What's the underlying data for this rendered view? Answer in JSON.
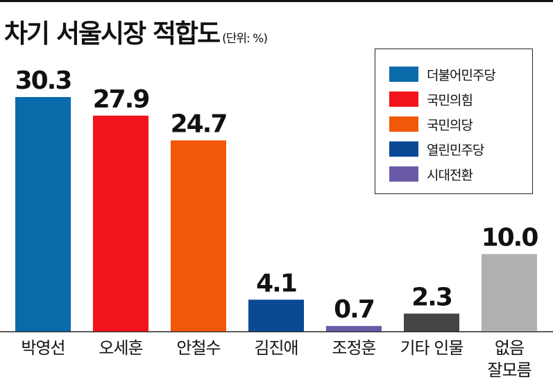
{
  "header": {
    "title": "차기 서울시장 적합도",
    "unit": "(단위: %)"
  },
  "legend": [
    {
      "label": "더불어민주당",
      "color": "#0a6aaa"
    },
    {
      "label": "국민의힘",
      "color": "#f2141a"
    },
    {
      "label": "국민의당",
      "color": "#f2580a"
    },
    {
      "label": "열린민주당",
      "color": "#0a4a94"
    },
    {
      "label": "시대전환",
      "color": "#6a5aa6"
    }
  ],
  "chart_data": {
    "type": "bar",
    "title": "차기 서울시장 적합도",
    "unit": "(단위: %)",
    "categories": [
      "박영선",
      "오세훈",
      "안철수",
      "김진애",
      "조정훈",
      "기타 인물",
      "없음\n잘모름"
    ],
    "values": [
      30.3,
      27.9,
      24.7,
      4.1,
      0.7,
      2.3,
      10.0
    ],
    "value_labels": [
      "30.3",
      "27.9",
      "24.7",
      "4.1",
      "0.7",
      "2.3",
      "10.0"
    ],
    "colors": [
      "#0a6aaa",
      "#f2141a",
      "#f2580a",
      "#0a4a94",
      "#6a5aa6",
      "#444444",
      "#b0b0b0"
    ],
    "ylim": [
      0,
      32
    ],
    "grid": false,
    "legend_position": "top-right"
  }
}
